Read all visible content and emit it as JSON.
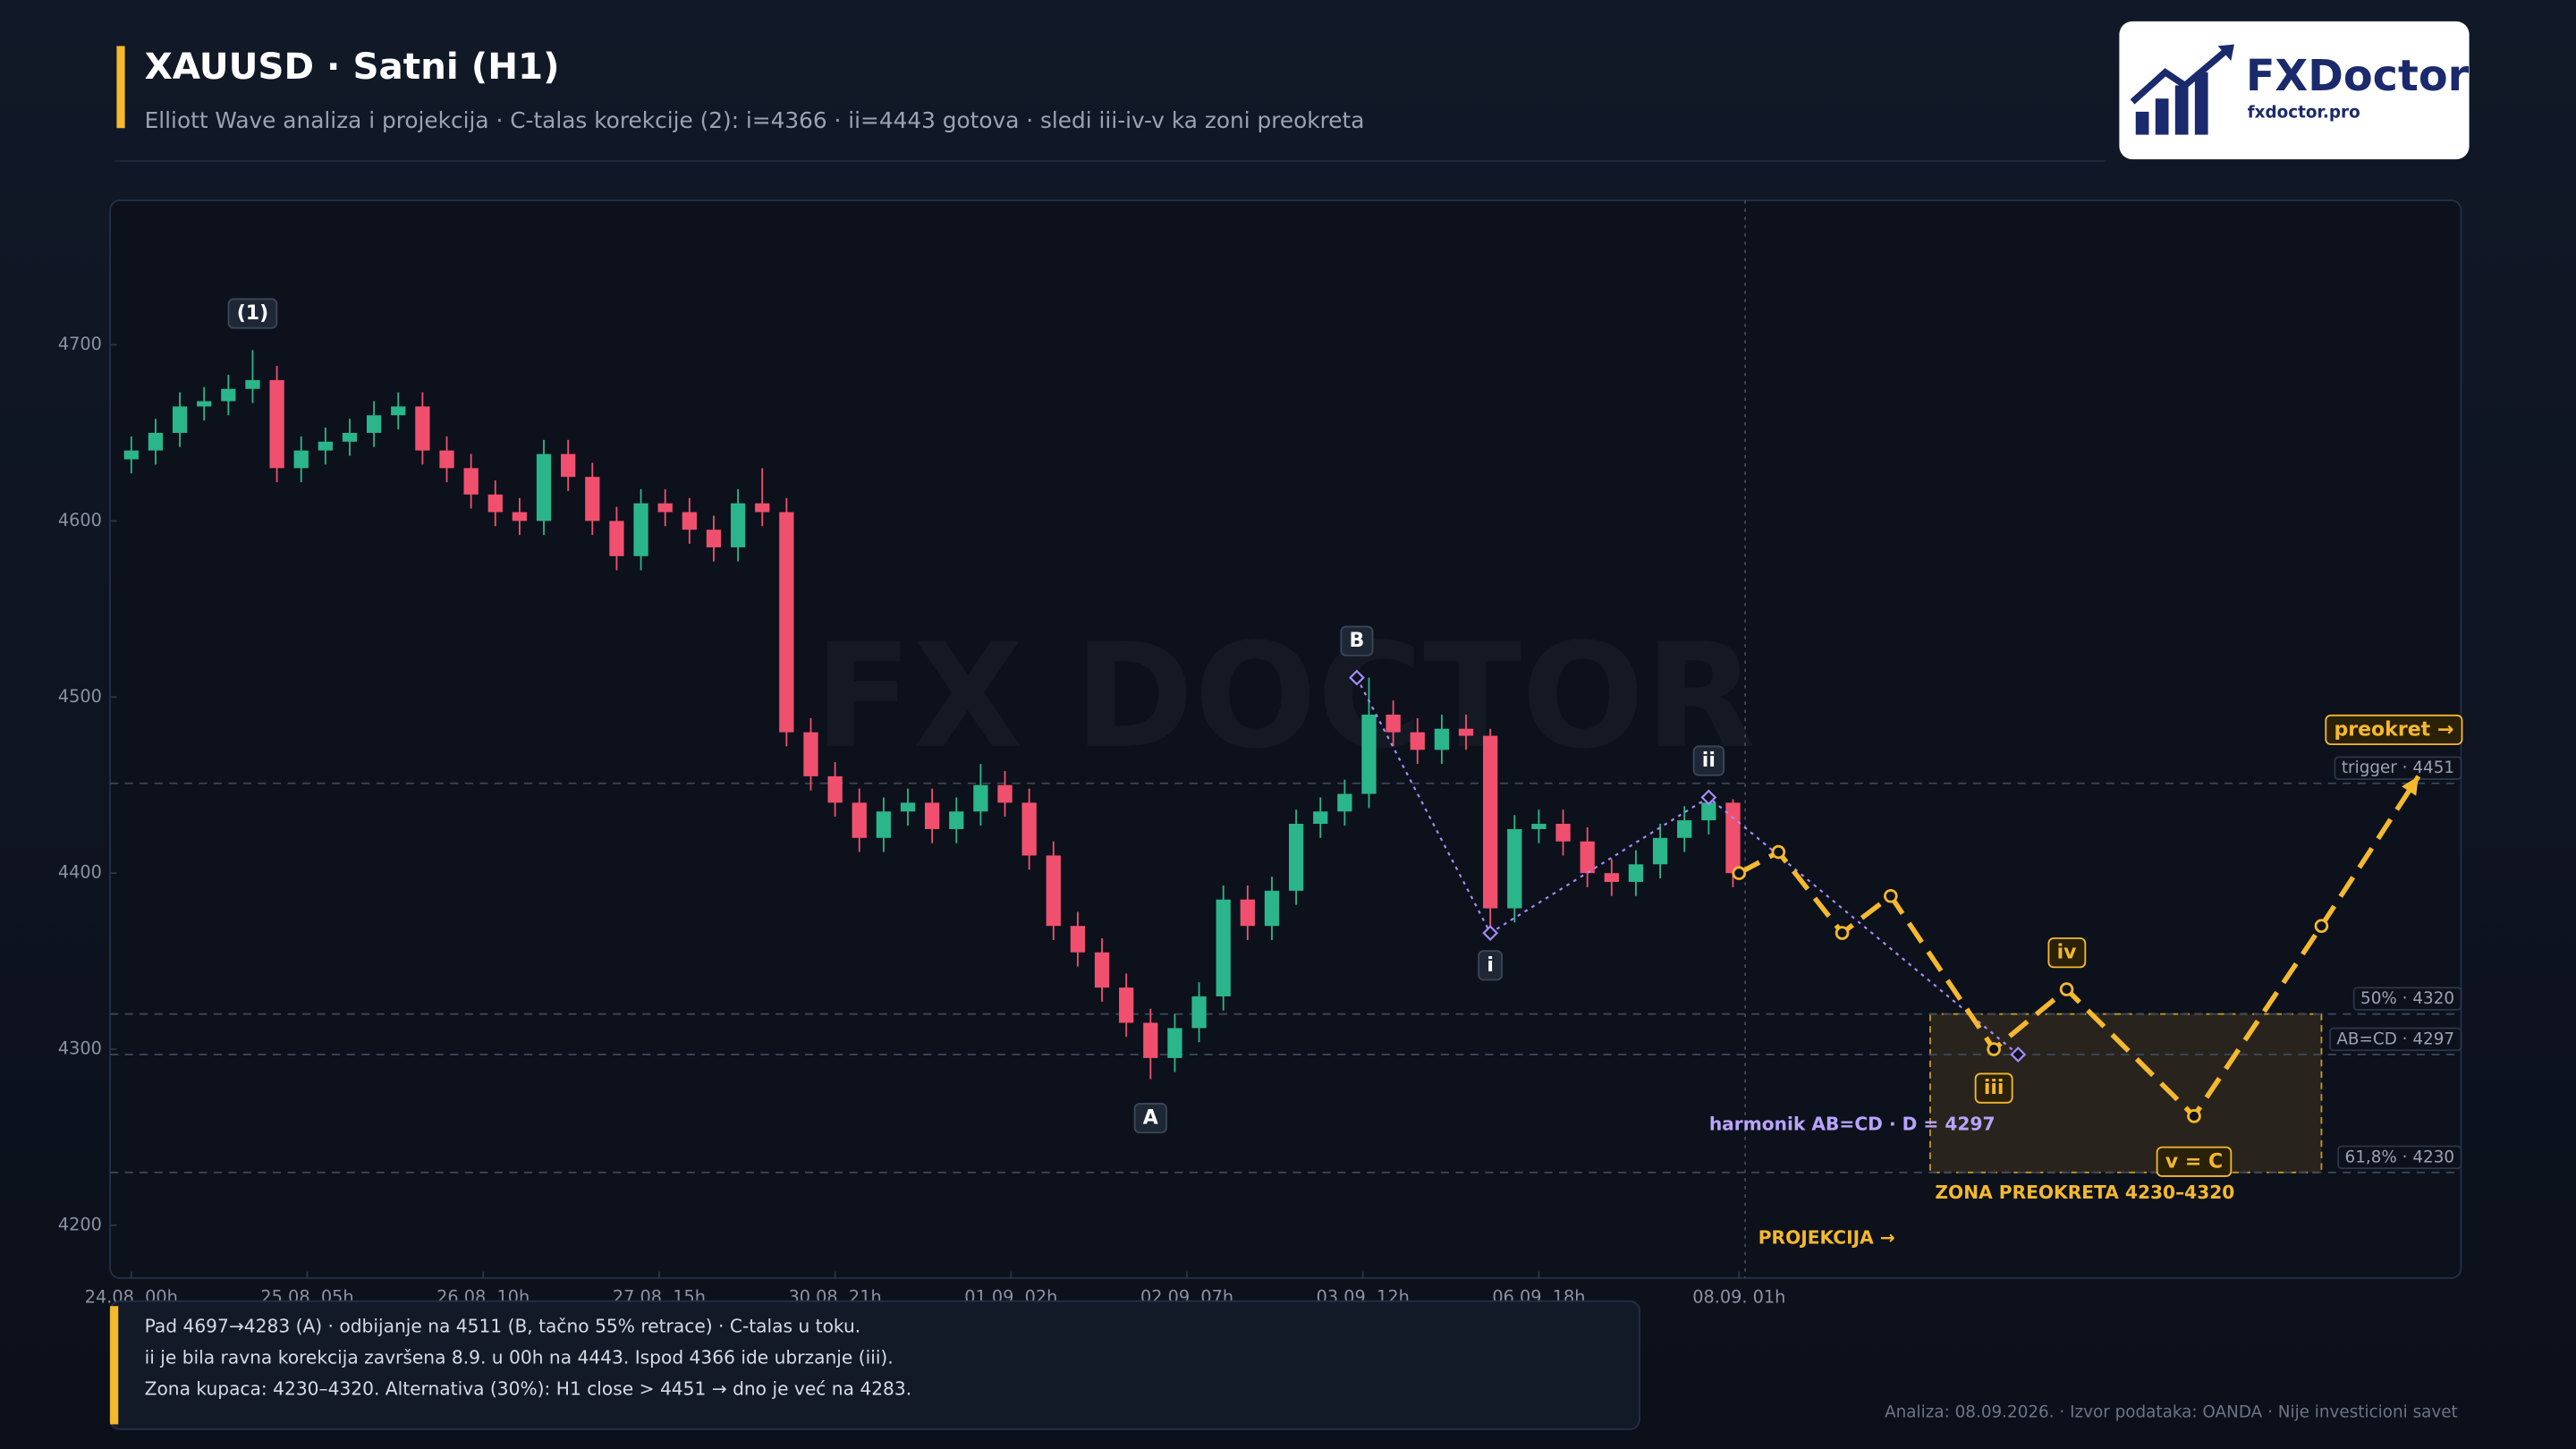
{
  "header": {
    "title": "XAUUSD · Satni (H1)",
    "subtitle": "Elliott Wave analiza i projekcija  ·  C-talas korekcije (2): i=4366 · ii=4443 gotova · sledi iii-iv-v ka zoni preokreta"
  },
  "logo": {
    "name": "FXDoctor",
    "url": "fxdoctor.pro"
  },
  "chart_data": {
    "type": "candlestick",
    "watermark": "FX DOCTOR",
    "x": [
      0,
      4,
      8,
      12,
      16,
      20,
      24,
      28,
      32,
      36,
      40,
      44,
      48,
      52,
      56,
      60,
      64,
      68,
      72,
      76,
      80,
      84,
      88,
      92,
      96,
      100,
      104,
      108,
      112,
      116,
      120,
      124,
      128,
      132,
      136,
      140,
      144,
      148,
      152,
      156,
      160,
      164,
      168,
      172,
      176,
      180,
      184,
      188,
      192,
      196,
      200,
      204,
      208,
      212,
      216,
      220,
      224,
      228,
      232,
      236,
      240,
      244,
      248,
      252,
      256,
      260,
      264
    ],
    "open": [
      4635,
      4640,
      4650,
      4665,
      4668,
      4675,
      4680,
      4630,
      4640,
      4645,
      4650,
      4660,
      4665,
      4640,
      4630,
      4615,
      4605,
      4600,
      4638,
      4625,
      4600,
      4580,
      4610,
      4605,
      4595,
      4585,
      4610,
      4605,
      4480,
      4455,
      4440,
      4420,
      4435,
      4440,
      4425,
      4435,
      4450,
      4440,
      4410,
      4370,
      4355,
      4335,
      4315,
      4295,
      4312,
      4330,
      4385,
      4370,
      4390,
      4428,
      4435,
      4445,
      4490,
      4480,
      4470,
      4482,
      4478,
      4380,
      4425,
      4428,
      4418,
      4400,
      4395,
      4405,
      4420,
      4430,
      4440
    ],
    "high": [
      4648,
      4658,
      4673,
      4676,
      4683,
      4697,
      4688,
      4648,
      4653,
      4658,
      4668,
      4673,
      4673,
      4648,
      4638,
      4623,
      4613,
      4646,
      4646,
      4633,
      4608,
      4618,
      4618,
      4613,
      4603,
      4618,
      4630,
      4613,
      4488,
      4463,
      4448,
      4443,
      4448,
      4448,
      4443,
      4462,
      4458,
      4448,
      4418,
      4378,
      4363,
      4343,
      4323,
      4320,
      4338,
      4393,
      4393,
      4398,
      4436,
      4443,
      4453,
      4511,
      4498,
      4488,
      4490,
      4490,
      4482,
      4433,
      4436,
      4436,
      4426,
      4408,
      4413,
      4428,
      4438,
      4443,
      4442
    ],
    "low": [
      4627,
      4632,
      4642,
      4657,
      4660,
      4667,
      4622,
      4622,
      4632,
      4637,
      4642,
      4652,
      4632,
      4622,
      4607,
      4597,
      4592,
      4592,
      4617,
      4592,
      4572,
      4572,
      4597,
      4587,
      4577,
      4577,
      4597,
      4472,
      4447,
      4432,
      4412,
      4412,
      4427,
      4417,
      4417,
      4427,
      4432,
      4402,
      4362,
      4347,
      4327,
      4307,
      4283,
      4287,
      4304,
      4322,
      4362,
      4362,
      4382,
      4420,
      4427,
      4437,
      4472,
      4462,
      4462,
      4470,
      4366,
      4372,
      4417,
      4410,
      4392,
      4387,
      4387,
      4397,
      4412,
      4422,
      4392
    ],
    "close": [
      4640,
      4650,
      4665,
      4668,
      4675,
      4680,
      4630,
      4640,
      4645,
      4650,
      4660,
      4665,
      4640,
      4630,
      4615,
      4605,
      4600,
      4638,
      4625,
      4600,
      4580,
      4610,
      4605,
      4595,
      4585,
      4610,
      4605,
      4480,
      4455,
      4440,
      4420,
      4435,
      4440,
      4425,
      4435,
      4450,
      4440,
      4410,
      4370,
      4355,
      4335,
      4315,
      4295,
      4312,
      4330,
      4385,
      4370,
      4390,
      4428,
      4435,
      4445,
      4490,
      4480,
      4470,
      4482,
      4478,
      4380,
      4425,
      4428,
      4418,
      4400,
      4395,
      4405,
      4420,
      4430,
      4440,
      4400
    ],
    "up_color": "#2bb58a",
    "down_color": "#f0506e",
    "xlim": [
      -3.5,
      384
    ],
    "xticks": [
      {
        "value": 0,
        "label": "24.08. 00h"
      },
      {
        "value": 29,
        "label": "25.08. 05h"
      },
      {
        "value": 58,
        "label": "26.08. 10h"
      },
      {
        "value": 87,
        "label": "27.08. 15h"
      },
      {
        "value": 116,
        "label": "30.08. 21h"
      },
      {
        "value": 145,
        "label": "01.09. 02h"
      },
      {
        "value": 174,
        "label": "02.09. 07h"
      },
      {
        "value": 203,
        "label": "03.09. 12h"
      },
      {
        "value": 232,
        "label": "06.09. 18h"
      },
      {
        "value": 265,
        "label": "08.09. 01h"
      }
    ],
    "ylim": [
      4170,
      4782
    ],
    "yticks": [
      4200,
      4300,
      4400,
      4500,
      4600,
      4700
    ],
    "levels": [
      {
        "value": 4451,
        "label": "trigger · 4451"
      },
      {
        "value": 4320,
        "label": "50% · 4320"
      },
      {
        "value": 4297,
        "label": "AB=CD · 4297"
      },
      {
        "value": 4230,
        "label": "61,8% · 4230"
      }
    ],
    "harmonic": {
      "x": [
        202,
        224,
        260,
        311
      ],
      "y": [
        4511,
        4366,
        4443,
        4297
      ],
      "color": "#a78bfa",
      "label": "harmonik AB=CD · D = 4297"
    },
    "projection": {
      "x": [
        265,
        271.5,
        282,
        290,
        307,
        319,
        340,
        361,
        377
      ],
      "y": [
        4400,
        4412,
        4366,
        4387,
        4300,
        4334,
        4262,
        4370,
        4455
      ],
      "color": "#f5b82e",
      "start": 266,
      "label": "PROJEKCIJA →"
    },
    "zone": {
      "x": [
        296.5,
        361
      ],
      "y": [
        4230,
        4320
      ],
      "label": "ZONA PREOKRETA 4230–4320"
    },
    "wave_labels": {
      "w1": "(1)",
      "A": "A",
      "B": "B",
      "i": "i",
      "ii": "ii",
      "iii": "iii",
      "iv": "iv",
      "v": "v = C",
      "rev": "preokret →"
    }
  },
  "notes": [
    "Pad 4697→4283 (A) · odbijanje na 4511 (B, tačno 55% retrace) · C-talas u toku.",
    "ii je bila ravna korekcija završena 8.9. u 00h na 4443. Ispod 4366 ide ubrzanje (iii).",
    "Zona kupaca: 4230–4320. Alternativa (30%): H1 close > 4451 → dno je već na 4283."
  ],
  "footer": "Analiza: 08.09.2026. · Izvor podataka: OANDA · Nije investicioni savet"
}
